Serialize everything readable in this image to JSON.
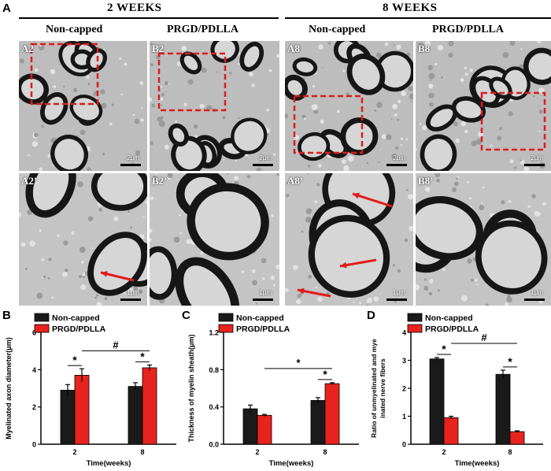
{
  "panels": {
    "a_letter": "A",
    "b_letter": "B",
    "c_letter": "C",
    "d_letter": "D"
  },
  "micrographs": {
    "group_left_title": "2 WEEKS",
    "group_right_title": "8 WEEKS",
    "columns": [
      "Non-capped",
      "PRGD/PDLLA",
      "Non-capped",
      "PRGD/PDLLA"
    ],
    "row1_labels": [
      "A2",
      "B2",
      "A8",
      "B8"
    ],
    "row2_labels": [
      "A2’",
      "B2’",
      "A8’",
      "B8’"
    ],
    "row1_scales": [
      "2μm",
      "2μm",
      "2μm",
      "2μm"
    ],
    "row2_scales": [
      "1μm",
      "1μm",
      "1μm",
      "1μm"
    ]
  },
  "chart_data": [
    {
      "type": "bar",
      "ylabel": "Myelinated axon diameter(μm)",
      "xlabel": "Time(weeks)",
      "categories": [
        "2",
        "8"
      ],
      "ylim": [
        0,
        6
      ],
      "yticks": [
        "0",
        "2",
        "4",
        "6"
      ],
      "series": [
        {
          "name": "Non-capped",
          "color": "#1a1a1a",
          "values": [
            2.9,
            3.1
          ],
          "errors": [
            0.3,
            0.2
          ]
        },
        {
          "name": "PRGD/PDLLA",
          "color": "#e8231f",
          "values": [
            3.7,
            4.1
          ],
          "errors": [
            0.35,
            0.15
          ]
        }
      ],
      "annotations": {
        "star_2": "*",
        "star_8": "*",
        "between": "#"
      }
    },
    {
      "type": "bar",
      "ylabel": "Thickness of myelin sheath(μm)",
      "xlabel": "Time(weeks)",
      "categories": [
        "2",
        "8"
      ],
      "ylim": [
        0,
        1.2
      ],
      "yticks": [
        "0.0",
        "0.4",
        "0.8",
        "1.2"
      ],
      "series": [
        {
          "name": "Non-capped",
          "color": "#1a1a1a",
          "values": [
            0.38,
            0.47
          ],
          "errors": [
            0.04,
            0.03
          ]
        },
        {
          "name": "PRGD/PDLLA",
          "color": "#e8231f",
          "values": [
            0.31,
            0.65
          ],
          "errors": [
            0.01,
            0.01
          ]
        }
      ],
      "annotations": {
        "star_8": "*",
        "between": "*"
      }
    },
    {
      "type": "bar",
      "ylabel": "Ratio of unmyelinated and myelinated nerve fibers",
      "xlabel": "Time(weeks)",
      "categories": [
        "2",
        "8"
      ],
      "ylim": [
        0,
        4
      ],
      "yticks": [
        "0",
        "1",
        "2",
        "3",
        "4"
      ],
      "series": [
        {
          "name": "Non-capped",
          "color": "#1a1a1a",
          "values": [
            3.05,
            2.5
          ],
          "errors": [
            0.05,
            0.15
          ]
        },
        {
          "name": "PRGD/PDLLA",
          "color": "#e8231f",
          "values": [
            0.95,
            0.45
          ],
          "errors": [
            0.05,
            0.03
          ]
        }
      ],
      "annotations": {
        "star_2": "*",
        "star_8": "*",
        "between": "#"
      }
    }
  ]
}
